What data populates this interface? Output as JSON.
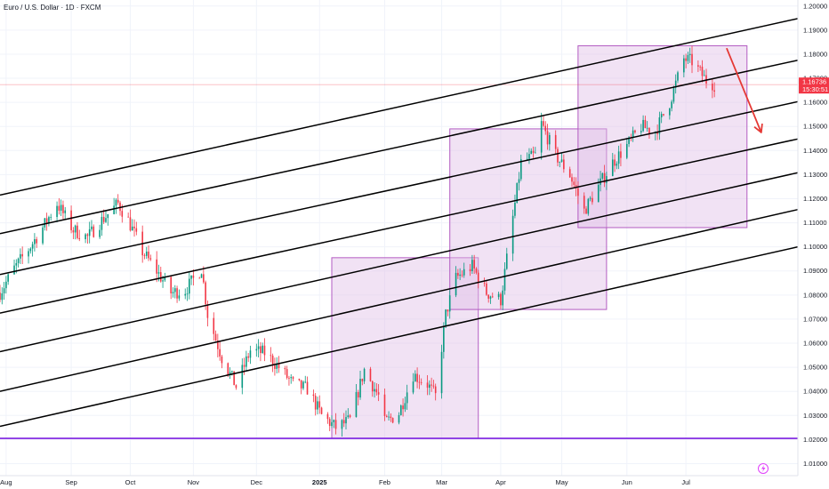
{
  "chart_data": {
    "type": "candlestick",
    "title": "Euro / U.S. Dollar · 1D · FXCM",
    "ylim": [
      1.005,
      1.2025
    ],
    "y_ticks": [
      "1.20000",
      "1.19000",
      "1.18000",
      "1.17000",
      "1.16000",
      "1.15000",
      "1.14000",
      "1.13000",
      "1.12000",
      "1.11000",
      "1.10000",
      "1.09000",
      "1.08000",
      "1.07000",
      "1.06000",
      "1.05000",
      "1.04000",
      "1.03000",
      "1.02000",
      "1.01000"
    ],
    "x_ticks": [
      {
        "label": "Aug",
        "date": "2024-08-01"
      },
      {
        "label": "Sep",
        "date": "2024-09-02"
      },
      {
        "label": "Oct",
        "date": "2024-10-01"
      },
      {
        "label": "Nov",
        "date": "2024-11-01"
      },
      {
        "label": "Dec",
        "date": "2024-12-02"
      },
      {
        "label": "2025",
        "date": "2025-01-02",
        "bold": true
      },
      {
        "label": "Feb",
        "date": "2025-02-03"
      },
      {
        "label": "Mar",
        "date": "2025-03-03"
      },
      {
        "label": "Apr",
        "date": "2025-04-01"
      },
      {
        "label": "May",
        "date": "2025-05-01"
      },
      {
        "label": "Jun",
        "date": "2025-06-02"
      },
      {
        "label": "Jul",
        "date": "2025-07-01"
      }
    ],
    "x_start": "2024-07-29",
    "x_end": "2025-08-25",
    "price_checkpoints": [
      [
        "2024-07-29",
        1.081
      ],
      [
        "2024-08-05",
        1.091
      ],
      [
        "2024-08-12",
        1.099
      ],
      [
        "2024-08-19",
        1.108
      ],
      [
        "2024-08-26",
        1.118
      ],
      [
        "2024-09-03",
        1.107
      ],
      [
        "2024-09-10",
        1.104
      ],
      [
        "2024-09-17",
        1.111
      ],
      [
        "2024-09-25",
        1.118
      ],
      [
        "2024-09-30",
        1.111
      ],
      [
        "2024-10-07",
        1.098
      ],
      [
        "2024-10-14",
        1.09
      ],
      [
        "2024-10-21",
        1.081
      ],
      [
        "2024-10-28",
        1.082
      ],
      [
        "2024-11-05",
        1.091
      ],
      [
        "2024-11-08",
        1.072
      ],
      [
        "2024-11-15",
        1.054
      ],
      [
        "2024-11-22",
        1.042
      ],
      [
        "2024-11-29",
        1.057
      ],
      [
        "2024-12-06",
        1.056
      ],
      [
        "2024-12-13",
        1.05
      ],
      [
        "2024-12-20",
        1.043
      ],
      [
        "2024-12-27",
        1.041
      ],
      [
        "2025-01-03",
        1.03
      ],
      [
        "2025-01-10",
        1.025
      ],
      [
        "2025-01-17",
        1.028
      ],
      [
        "2025-01-24",
        1.049
      ],
      [
        "2025-01-31",
        1.038
      ],
      [
        "2025-02-03",
        1.027
      ],
      [
        "2025-02-10",
        1.031
      ],
      [
        "2025-02-17",
        1.047
      ],
      [
        "2025-02-24",
        1.043
      ],
      [
        "2025-02-28",
        1.038
      ],
      [
        "2025-03-05",
        1.072
      ],
      [
        "2025-03-10",
        1.087
      ],
      [
        "2025-03-18",
        1.092
      ],
      [
        "2025-03-25",
        1.081
      ],
      [
        "2025-04-01",
        1.078
      ],
      [
        "2025-04-04",
        1.095
      ],
      [
        "2025-04-11",
        1.135
      ],
      [
        "2025-04-18",
        1.138
      ],
      [
        "2025-04-21",
        1.151
      ],
      [
        "2025-04-28",
        1.138
      ],
      [
        "2025-05-05",
        1.13
      ],
      [
        "2025-05-12",
        1.115
      ],
      [
        "2025-05-19",
        1.125
      ],
      [
        "2025-05-26",
        1.135
      ],
      [
        "2025-06-02",
        1.142
      ],
      [
        "2025-06-09",
        1.15
      ],
      [
        "2025-06-16",
        1.148
      ],
      [
        "2025-06-23",
        1.16
      ],
      [
        "2025-06-30",
        1.178
      ],
      [
        "2025-07-04",
        1.177
      ],
      [
        "2025-07-11",
        1.169
      ],
      [
        "2025-07-15",
        1.1674
      ]
    ],
    "last_price": {
      "value": 1.16736,
      "label": "1.16736",
      "countdown": "15:30:51"
    },
    "horizontal_line": {
      "price": 1.0205,
      "color": "#7b1fe0"
    },
    "channel_lines": [
      {
        "start": [
          "2024-07-29",
          1.1215
        ],
        "end": [
          "2025-08-25",
          1.1948
        ]
      },
      {
        "start": [
          "2024-07-29",
          1.1055
        ],
        "end": [
          "2025-08-25",
          1.1775
        ]
      },
      {
        "start": [
          "2024-07-29",
          1.0885
        ],
        "end": [
          "2025-08-25",
          1.1603
        ]
      },
      {
        "start": [
          "2024-07-29",
          1.0725
        ],
        "end": [
          "2025-08-25",
          1.1448
        ]
      },
      {
        "start": [
          "2024-07-29",
          1.0565
        ],
        "end": [
          "2025-08-25",
          1.1308
        ]
      },
      {
        "start": [
          "2024-07-29",
          1.04
        ],
        "end": [
          "2025-08-25",
          1.1155
        ]
      },
      {
        "start": [
          "2024-07-29",
          1.0255
        ],
        "end": [
          "2025-08-25",
          1.1
        ]
      }
    ],
    "boxes": [
      {
        "start": "2025-01-08",
        "end": "2025-03-21",
        "top": 1.0955,
        "bottom": 1.0205
      },
      {
        "start": "2025-03-07",
        "end": "2025-05-23",
        "top": 1.149,
        "bottom": 1.074
      },
      {
        "start": "2025-05-09",
        "end": "2025-07-31",
        "top": 1.1835,
        "bottom": 1.108
      }
    ],
    "arrow": {
      "start": [
        "2025-07-21",
        1.1825
      ],
      "end": [
        "2025-08-07",
        1.1475
      ],
      "color": "#e53935"
    },
    "colors": {
      "up": "#089981",
      "down": "#f23645",
      "box_fill": "#e1bee7",
      "box_stroke": "#b35cc2",
      "lines": "#000000"
    }
  }
}
